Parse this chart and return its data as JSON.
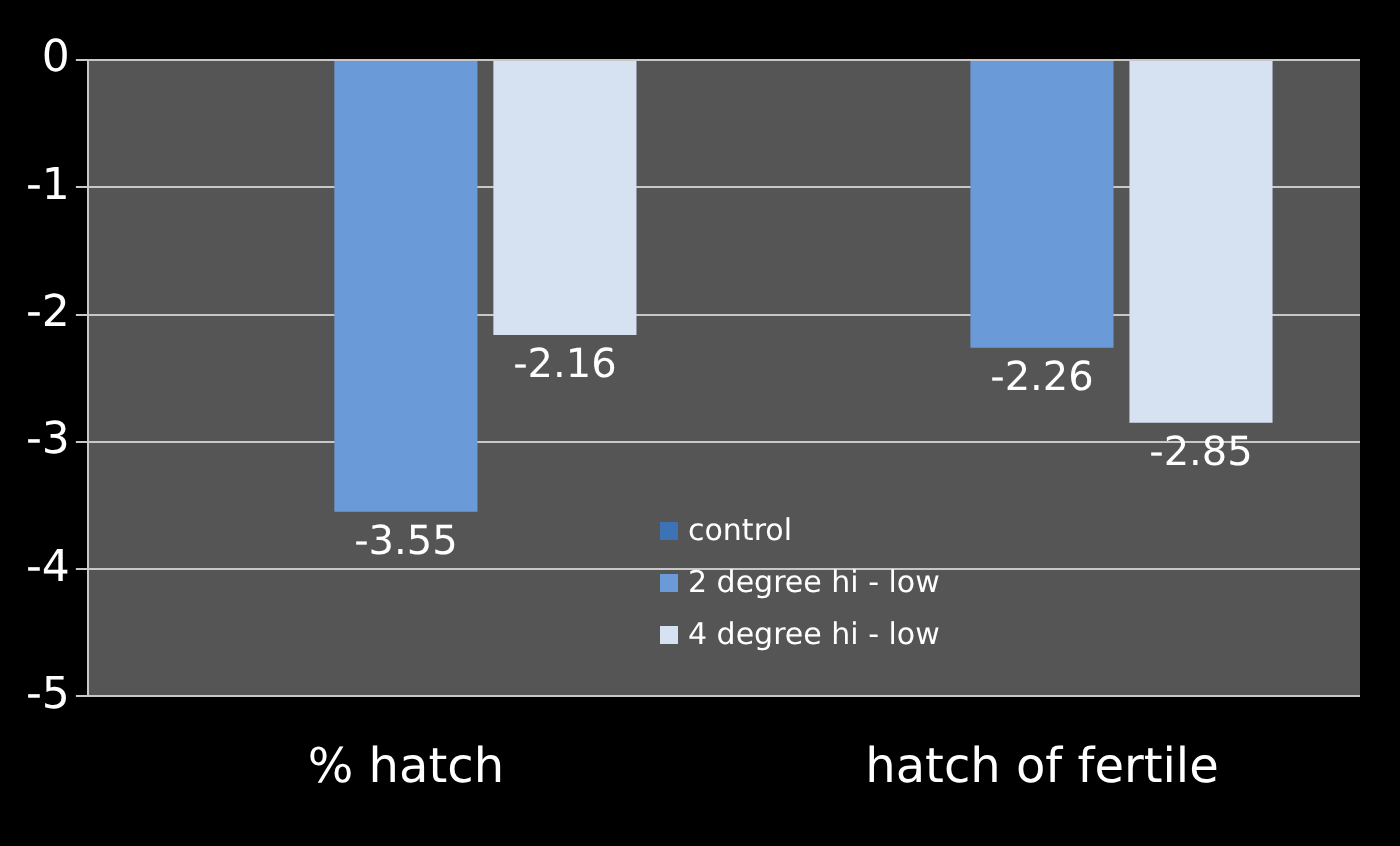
{
  "chart_data": {
    "type": "bar",
    "categories": [
      "% hatch",
      "hatch of fertile"
    ],
    "series": [
      {
        "name": "control",
        "color": "#3d72b4",
        "values": [
          0,
          0
        ],
        "value_labels": [
          null,
          null
        ]
      },
      {
        "name": "2 degree hi - low",
        "color": "#6a9bd8",
        "values": [
          -3.55,
          -2.26
        ],
        "value_labels": [
          "-3.55",
          "-2.26"
        ]
      },
      {
        "name": "4 degree hi - low",
        "color": "#d6e2f2",
        "values": [
          -2.16,
          -2.85
        ],
        "value_labels": [
          "-2.16",
          "-2.85"
        ]
      }
    ],
    "ylim": [
      -5,
      0
    ],
    "yticks": [
      0,
      -1,
      -2,
      -3,
      -4,
      -5
    ],
    "grid": "y",
    "legend": "bottom"
  }
}
